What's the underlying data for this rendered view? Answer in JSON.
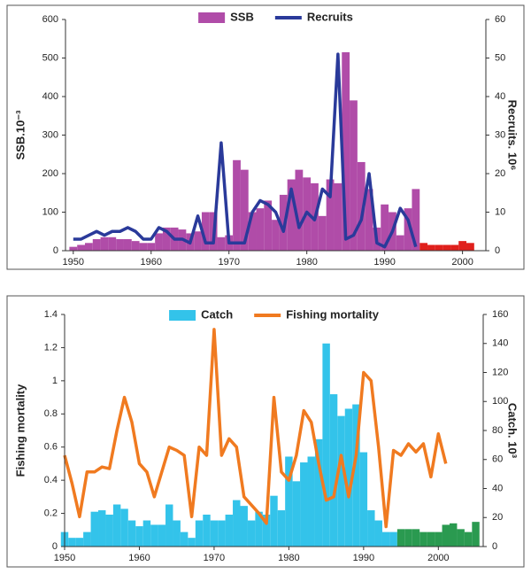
{
  "chart_data": [
    {
      "type": "combo",
      "ylabel": "SSB.10⁻³",
      "y2label": "Recruits. 10⁶",
      "x": [
        1950,
        1951,
        1952,
        1953,
        1954,
        1955,
        1956,
        1957,
        1958,
        1959,
        1960,
        1961,
        1962,
        1963,
        1964,
        1965,
        1966,
        1967,
        1968,
        1969,
        1970,
        1971,
        1972,
        1973,
        1974,
        1975,
        1976,
        1977,
        1978,
        1979,
        1980,
        1981,
        1982,
        1983,
        1984,
        1985,
        1986,
        1987,
        1988,
        1989,
        1990,
        1991,
        1992,
        1993,
        1994,
        1995,
        1996,
        1997,
        1998,
        1999,
        2000,
        2001
      ],
      "xlim": [
        1949,
        2003
      ],
      "xticks": [
        1950,
        1960,
        1970,
        1980,
        1990,
        2000
      ],
      "ylim": [
        0,
        600
      ],
      "yticks": [
        0,
        100,
        200,
        300,
        400,
        500,
        600
      ],
      "y2lim": [
        0,
        60
      ],
      "y2ticks": [
        0,
        10,
        20,
        30,
        40,
        50,
        60
      ],
      "series": [
        {
          "name": "SSB",
          "type": "bar",
          "color": "#b04ca8",
          "values": [
            10,
            15,
            20,
            30,
            35,
            35,
            30,
            30,
            25,
            20,
            20,
            45,
            60,
            60,
            55,
            45,
            50,
            100,
            100,
            35,
            40,
            235,
            210,
            100,
            110,
            130,
            80,
            145,
            185,
            210,
            190,
            175,
            90,
            185,
            175,
            515,
            390,
            230,
            160,
            60,
            120,
            100,
            40,
            110,
            160,
            null,
            null,
            null,
            null,
            null,
            null,
            null
          ]
        },
        {
          "type": "bar",
          "color": "#e0201c",
          "values": [
            null,
            null,
            null,
            null,
            null,
            null,
            null,
            null,
            null,
            null,
            null,
            null,
            null,
            null,
            null,
            null,
            null,
            null,
            null,
            null,
            null,
            null,
            null,
            null,
            null,
            null,
            null,
            null,
            null,
            null,
            null,
            null,
            null,
            null,
            null,
            null,
            null,
            null,
            null,
            null,
            null,
            null,
            null,
            null,
            null,
            20,
            15,
            15,
            15,
            15,
            25,
            20
          ]
        },
        {
          "name": "Recruits",
          "type": "line",
          "axis": "y2",
          "color": "#2a3a9a",
          "values": [
            3,
            3,
            4,
            5,
            4,
            5,
            5,
            6,
            5,
            3,
            3,
            6,
            5,
            3,
            3,
            2,
            9,
            2,
            2,
            28,
            2,
            2,
            2,
            10,
            13,
            12,
            10,
            5,
            16,
            6,
            10,
            8,
            16,
            14,
            51,
            3,
            4,
            8,
            20,
            2,
            1,
            5,
            11,
            8,
            1,
            null,
            null,
            null,
            null,
            null,
            null,
            null
          ]
        }
      ]
    },
    {
      "type": "combo",
      "ylabel": "Fishing mortality",
      "y2label": "Catch. 10³",
      "x": [
        1950,
        1951,
        1952,
        1953,
        1954,
        1955,
        1956,
        1957,
        1958,
        1959,
        1960,
        1961,
        1962,
        1963,
        1964,
        1965,
        1966,
        1967,
        1968,
        1969,
        1970,
        1971,
        1972,
        1973,
        1974,
        1975,
        1976,
        1977,
        1978,
        1979,
        1980,
        1981,
        1982,
        1983,
        1984,
        1985,
        1986,
        1987,
        1988,
        1989,
        1990,
        1991,
        1992,
        1993,
        1994,
        1995,
        1996,
        1997,
        1998,
        1999,
        2000,
        2001,
        2002,
        2003,
        2004,
        2005
      ],
      "xlim": [
        1950,
        2006
      ],
      "xticks": [
        1950,
        1960,
        1970,
        1980,
        1990,
        2000
      ],
      "ylim": [
        0,
        1.4
      ],
      "yticks": [
        0,
        0.2,
        0.4,
        0.6,
        0.8,
        1,
        1.2,
        1.4
      ],
      "y2lim": [
        0,
        160
      ],
      "y2ticks": [
        0,
        20,
        40,
        60,
        80,
        100,
        120,
        140,
        160
      ],
      "series": [
        {
          "name": "Catch",
          "type": "bar",
          "axis": "y2",
          "color": "#33c3ea",
          "values": [
            10,
            6,
            6,
            10,
            24,
            25,
            22,
            29,
            26,
            18,
            14,
            18,
            15,
            15,
            29,
            18,
            10,
            6,
            18,
            22,
            18,
            18,
            22,
            32,
            28,
            18,
            24,
            22,
            35,
            25,
            62,
            45,
            58,
            62,
            74,
            140,
            105,
            90,
            95,
            98,
            65,
            25,
            18,
            10,
            10,
            null,
            null,
            null,
            null,
            null,
            null,
            null,
            null,
            null,
            null,
            null
          ]
        },
        {
          "type": "bar",
          "axis": "y2",
          "color": "#2a9a50",
          "values": [
            null,
            null,
            null,
            null,
            null,
            null,
            null,
            null,
            null,
            null,
            null,
            null,
            null,
            null,
            null,
            null,
            null,
            null,
            null,
            null,
            null,
            null,
            null,
            null,
            null,
            null,
            null,
            null,
            null,
            null,
            null,
            null,
            null,
            null,
            null,
            null,
            null,
            null,
            null,
            null,
            null,
            null,
            null,
            null,
            null,
            12,
            12,
            12,
            10,
            10,
            10,
            15,
            16,
            12,
            10,
            17
          ]
        },
        {
          "name": "Fishing mortality",
          "type": "line",
          "color": "#f07a20",
          "values": [
            0.55,
            0.38,
            0.18,
            0.45,
            0.45,
            0.48,
            0.47,
            0.7,
            0.9,
            0.75,
            0.5,
            0.45,
            0.3,
            0.45,
            0.6,
            0.58,
            0.55,
            0.18,
            0.6,
            0.55,
            1.31,
            0.55,
            0.65,
            0.6,
            0.3,
            0.25,
            0.2,
            0.14,
            0.9,
            0.45,
            0.4,
            0.55,
            0.82,
            0.75,
            0.5,
            0.28,
            0.3,
            0.55,
            0.3,
            0.55,
            1.05,
            1.0,
            0.6,
            0.12,
            0.58,
            0.55,
            0.62,
            0.57,
            0.62,
            0.42,
            0.68,
            0.5,
            null,
            null,
            null,
            null
          ]
        }
      ]
    }
  ]
}
